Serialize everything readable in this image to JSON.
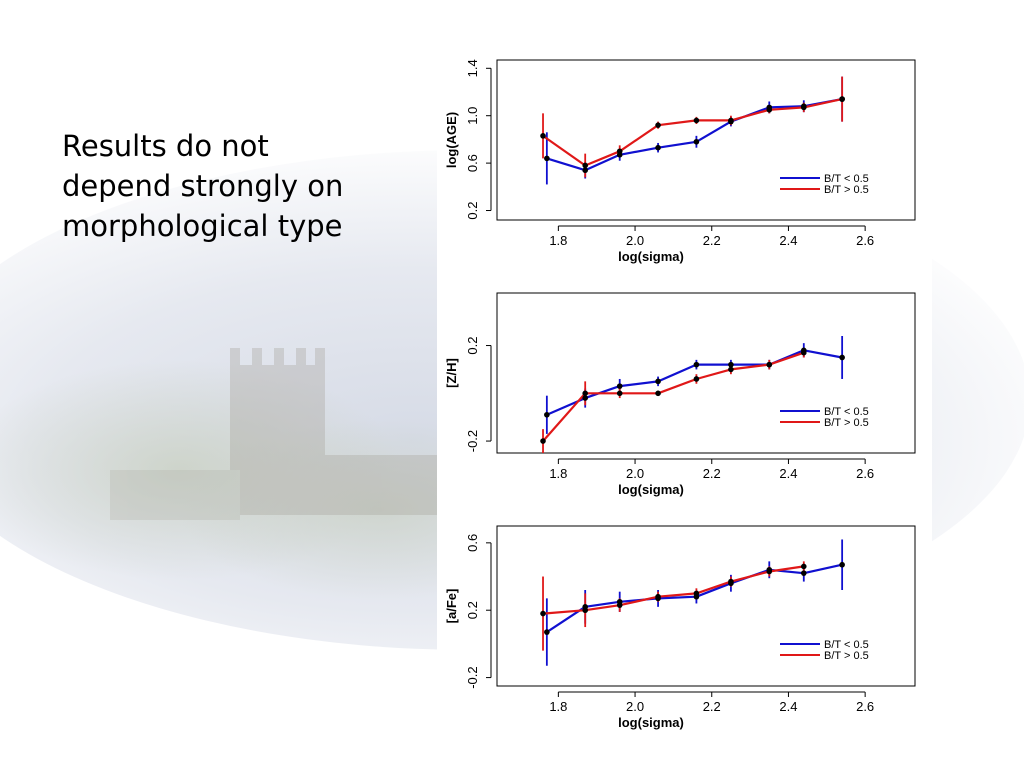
{
  "slide": {
    "lines": [
      "Results do not",
      "depend strongly on",
      "morphological type"
    ]
  },
  "colors": {
    "bt_low": "#1010d0",
    "bt_high": "#e01818",
    "points": "#000000",
    "frame": "#000000"
  },
  "chart_data": [
    {
      "type": "line",
      "xlabel": "log(sigma)",
      "ylabel": "log(AGE)",
      "xlim": [
        1.64,
        2.73
      ],
      "ylim": [
        0.12,
        1.47
      ],
      "xticks": [
        1.8,
        2.0,
        2.2,
        2.4,
        2.6
      ],
      "xtick_labels": [
        "1.8",
        "2.0",
        "2.2",
        "2.4",
        "2.6"
      ],
      "yticks": [
        0.2,
        0.6,
        1.0,
        1.4
      ],
      "ytick_labels": [
        "0.2",
        "0.6",
        "1.0",
        "1.4"
      ],
      "legend": {
        "placement": "bottom-right",
        "entries": [
          "B/T < 0.5",
          "B/T > 0.5"
        ]
      },
      "series": [
        {
          "name": "B/T < 0.5",
          "color": "#1010d0",
          "x": [
            1.77,
            1.87,
            1.96,
            2.06,
            2.16,
            2.25,
            2.35,
            2.44,
            2.54
          ],
          "y": [
            0.64,
            0.54,
            0.67,
            0.73,
            0.78,
            0.95,
            1.07,
            1.08,
            1.14
          ],
          "err": [
            0.22,
            0.07,
            0.05,
            0.04,
            0.05,
            0.04,
            0.05,
            0.05,
            0.19
          ]
        },
        {
          "name": "B/T > 0.5",
          "color": "#e01818",
          "x": [
            1.76,
            1.87,
            1.96,
            2.06,
            2.16,
            2.25,
            2.35,
            2.44,
            2.54
          ],
          "y": [
            0.83,
            0.58,
            0.7,
            0.92,
            0.96,
            0.96,
            1.05,
            1.07,
            1.14
          ],
          "err": [
            0.19,
            0.1,
            0.05,
            0.03,
            0.03,
            0.04,
            0.03,
            0.04,
            0.19
          ]
        }
      ]
    },
    {
      "type": "line",
      "xlabel": "log(sigma)",
      "ylabel": "[Z/H]",
      "xlim": [
        1.64,
        2.73
      ],
      "ylim": [
        -0.25,
        0.42
      ],
      "xticks": [
        1.8,
        2.0,
        2.2,
        2.4,
        2.6
      ],
      "xtick_labels": [
        "1.8",
        "2.0",
        "2.2",
        "2.4",
        "2.6"
      ],
      "yticks": [
        -0.2,
        0.2
      ],
      "ytick_labels": [
        "-0.2",
        "0.2"
      ],
      "legend": {
        "placement": "bottom-right",
        "entries": [
          "B/T < 0.5",
          "B/T > 0.5"
        ]
      },
      "series": [
        {
          "name": "B/T < 0.5",
          "color": "#1010d0",
          "x": [
            1.77,
            1.87,
            1.96,
            2.06,
            2.16,
            2.25,
            2.35,
            2.44,
            2.54
          ],
          "y": [
            -0.09,
            -0.02,
            0.03,
            0.05,
            0.12,
            0.12,
            0.12,
            0.18,
            0.15
          ],
          "err": [
            0.08,
            0.04,
            0.03,
            0.02,
            0.02,
            0.02,
            0.02,
            0.03,
            0.09
          ]
        },
        {
          "name": "B/T > 0.5",
          "color": "#e01818",
          "x": [
            1.76,
            1.87,
            1.96,
            2.06,
            2.16,
            2.25,
            2.35,
            2.44
          ],
          "y": [
            -0.2,
            0.0,
            0.0,
            0.0,
            0.06,
            0.1,
            0.12,
            0.17
          ],
          "err": [
            0.05,
            0.05,
            0.02,
            0.01,
            0.02,
            0.02,
            0.02,
            0.02
          ]
        }
      ]
    },
    {
      "type": "line",
      "xlabel": "log(sigma)",
      "ylabel": "[a/Fe]",
      "xlim": [
        1.64,
        2.73
      ],
      "ylim": [
        -0.25,
        0.7
      ],
      "xticks": [
        1.8,
        2.0,
        2.2,
        2.4,
        2.6
      ],
      "xtick_labels": [
        "1.8",
        "2.0",
        "2.2",
        "2.4",
        "2.6"
      ],
      "yticks": [
        -0.2,
        0.2,
        0.6
      ],
      "ytick_labels": [
        "-0.2",
        "0.2",
        "0.6"
      ],
      "legend": {
        "placement": "bottom-right",
        "entries": [
          "B/T < 0.5",
          "B/T > 0.5"
        ]
      },
      "series": [
        {
          "name": "B/T < 0.5",
          "color": "#1010d0",
          "x": [
            1.77,
            1.87,
            1.96,
            2.06,
            2.16,
            2.25,
            2.35,
            2.44,
            2.54
          ],
          "y": [
            0.07,
            0.22,
            0.25,
            0.27,
            0.28,
            0.36,
            0.44,
            0.42,
            0.47
          ],
          "err": [
            0.2,
            0.1,
            0.06,
            0.05,
            0.04,
            0.05,
            0.05,
            0.05,
            0.15
          ]
        },
        {
          "name": "B/T > 0.5",
          "color": "#e01818",
          "x": [
            1.76,
            1.87,
            1.96,
            2.06,
            2.16,
            2.25,
            2.35,
            2.44
          ],
          "y": [
            0.18,
            0.2,
            0.23,
            0.28,
            0.3,
            0.37,
            0.43,
            0.46
          ],
          "err": [
            0.22,
            0.1,
            0.04,
            0.03,
            0.03,
            0.03,
            0.03,
            0.03
          ]
        }
      ]
    }
  ]
}
